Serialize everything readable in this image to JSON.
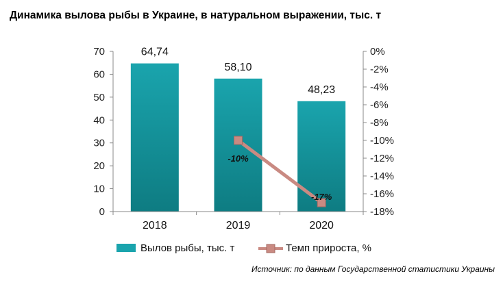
{
  "title": "Динамика вылова рыбы в Украине, в натуральном выражении, тыс. т",
  "source": "Источник: по данным Государственной статистики Украины",
  "colors": {
    "bar": "#1aa4ad",
    "bar_dark": "#0e7c82",
    "line": "#c98a82",
    "marker": "#c98a82",
    "marker_edge": "#a56a63"
  },
  "chart_data": {
    "type": "bar+line",
    "categories": [
      "2018",
      "2019",
      "2020"
    ],
    "series": [
      {
        "name": "Вылов рыбы, тыс. т",
        "type": "bar",
        "axis": "left",
        "values": [
          64.74,
          58.1,
          48.23
        ],
        "labels": [
          "64,74",
          "58,10",
          "48,23"
        ]
      },
      {
        "name": "Темп прироста, %",
        "type": "line",
        "axis": "right",
        "values": [
          null,
          -10,
          -17
        ],
        "labels": [
          "",
          "-10%",
          "-17%"
        ]
      }
    ],
    "y_left": {
      "ylim": [
        0,
        70
      ],
      "ticks": [
        "0",
        "10",
        "20",
        "30",
        "40",
        "50",
        "60",
        "70"
      ]
    },
    "y_right": {
      "ylim": [
        -18,
        0
      ],
      "ticks": [
        "0%",
        "-2%",
        "-4%",
        "-6%",
        "-8%",
        "-10%",
        "-12%",
        "-14%",
        "-16%",
        "-18%"
      ]
    },
    "grid": false,
    "legend": "bottom"
  }
}
